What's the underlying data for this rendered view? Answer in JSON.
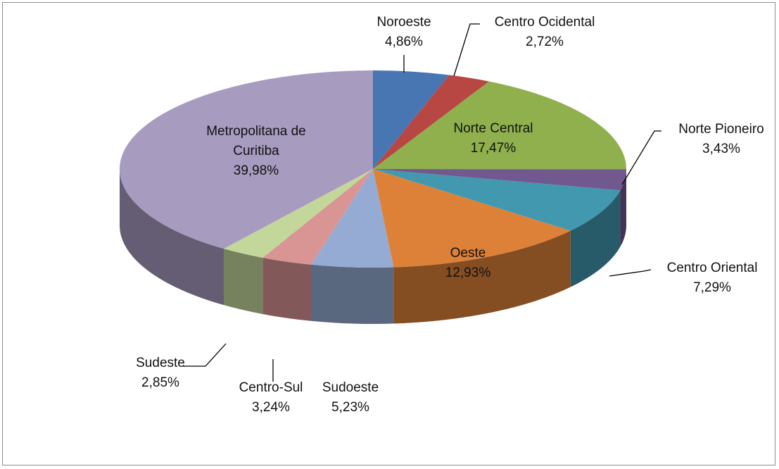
{
  "chart_data": {
    "type": "pie",
    "categories": [
      "Noroeste",
      "Centro Ocidental",
      "Norte Central",
      "Norte Pioneiro",
      "Centro Oriental",
      "Oeste",
      "Sudoeste",
      "Centro-Sul",
      "Sudeste",
      "Metropolitana de Curitiba"
    ],
    "values": [
      4.86,
      2.72,
      17.47,
      3.43,
      7.29,
      12.93,
      5.23,
      3.24,
      2.85,
      39.98
    ],
    "value_labels": [
      "4,86%",
      "2,72%",
      "17,47%",
      "3,43%",
      "7,29%",
      "12,93%",
      "5,23%",
      "3,24%",
      "2,85%",
      "39,98%"
    ],
    "colors": [
      "#4776b3",
      "#b84744",
      "#8fb04d",
      "#71588f",
      "#4198af",
      "#dd8139",
      "#95abd3",
      "#d99593",
      "#c4d79b",
      "#a79bbf"
    ]
  }
}
